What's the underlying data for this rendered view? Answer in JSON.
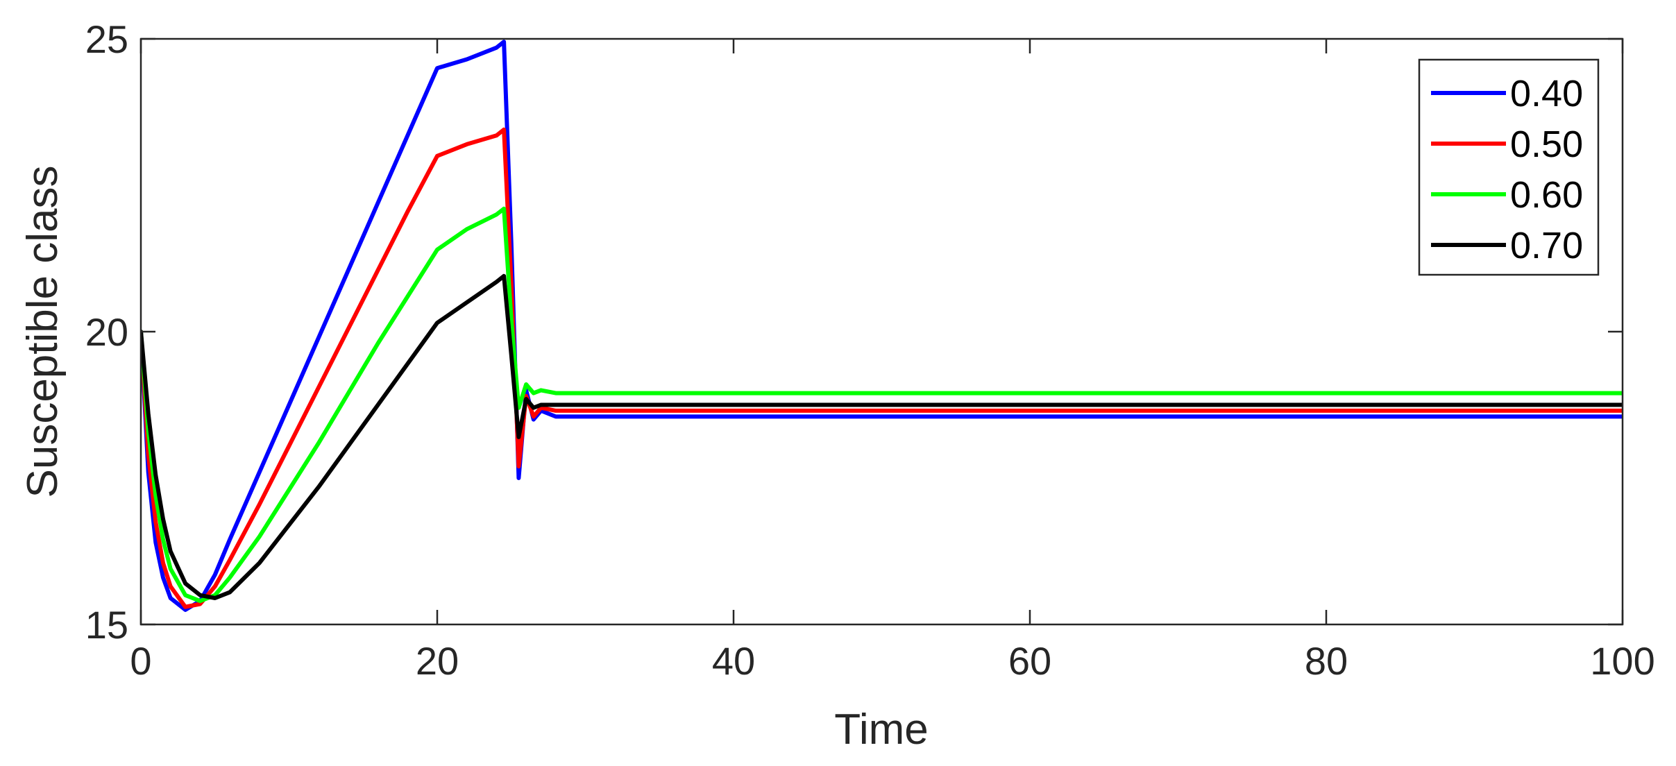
{
  "chart_data": {
    "type": "line",
    "title": "",
    "xlabel": "Time",
    "ylabel": "Susceptible class",
    "xlim": [
      0,
      100
    ],
    "ylim": [
      15,
      25
    ],
    "xticks": [
      0,
      20,
      40,
      60,
      80,
      100
    ],
    "yticks": [
      15,
      20,
      25
    ],
    "grid": false,
    "legend_position": "top-right",
    "series": [
      {
        "name": "0.40",
        "color": "#0000ff",
        "x": [
          0,
          0.5,
          1,
          1.5,
          2,
          3,
          4,
          5,
          6,
          8,
          10,
          12,
          14,
          16,
          18,
          20,
          22,
          24,
          24.5,
          25,
          25.5,
          26,
          26.5,
          27,
          28,
          30,
          40,
          60,
          80,
          100
        ],
        "y": [
          20,
          17.6,
          16.4,
          15.8,
          15.45,
          15.25,
          15.4,
          15.85,
          16.45,
          17.6,
          18.75,
          19.9,
          21.05,
          22.2,
          23.35,
          24.5,
          24.65,
          24.85,
          24.95,
          21.5,
          17.5,
          19.0,
          18.5,
          18.65,
          18.55,
          18.55,
          18.55,
          18.55,
          18.55,
          18.55
        ]
      },
      {
        "name": "0.50",
        "color": "#ff0000",
        "x": [
          0,
          0.5,
          1,
          1.5,
          2,
          3,
          4,
          5,
          6,
          8,
          10,
          12,
          14,
          16,
          18,
          20,
          22,
          24,
          24.5,
          25,
          25.5,
          26,
          26.5,
          27,
          28,
          30,
          40,
          60,
          80,
          100
        ],
        "y": [
          20,
          17.9,
          16.75,
          16.05,
          15.65,
          15.3,
          15.35,
          15.65,
          16.1,
          17.05,
          18.05,
          19.05,
          20.05,
          21.05,
          22.05,
          23.0,
          23.2,
          23.35,
          23.45,
          20.8,
          17.7,
          18.9,
          18.55,
          18.7,
          18.65,
          18.65,
          18.65,
          18.65,
          18.65,
          18.65
        ]
      },
      {
        "name": "0.60",
        "color": "#00ff00",
        "x": [
          0,
          0.5,
          1,
          1.5,
          2,
          3,
          4,
          5,
          6,
          8,
          10,
          12,
          14,
          16,
          18,
          20,
          22,
          24,
          24.5,
          25,
          25.5,
          26,
          26.5,
          27,
          28,
          30,
          40,
          60,
          80,
          100
        ],
        "y": [
          20,
          18.3,
          17.2,
          16.45,
          15.95,
          15.5,
          15.4,
          15.5,
          15.8,
          16.5,
          17.3,
          18.1,
          18.95,
          19.8,
          20.6,
          21.4,
          21.75,
          22.0,
          22.1,
          20.2,
          18.7,
          19.1,
          18.95,
          19.0,
          18.95,
          18.95,
          18.95,
          18.95,
          18.95,
          18.95
        ]
      },
      {
        "name": "0.70",
        "color": "#000000",
        "x": [
          0,
          0.5,
          1,
          1.5,
          2,
          3,
          4,
          5,
          6,
          8,
          10,
          12,
          14,
          16,
          18,
          20,
          22,
          24,
          24.5,
          25,
          25.5,
          26,
          26.5,
          27,
          28,
          30,
          40,
          60,
          80,
          100
        ],
        "y": [
          20,
          18.6,
          17.55,
          16.8,
          16.25,
          15.7,
          15.5,
          15.45,
          15.55,
          16.05,
          16.7,
          17.35,
          18.05,
          18.75,
          19.45,
          20.15,
          20.5,
          20.85,
          20.95,
          19.6,
          18.2,
          18.85,
          18.7,
          18.75,
          18.75,
          18.75,
          18.75,
          18.75,
          18.75,
          18.75
        ]
      }
    ]
  }
}
